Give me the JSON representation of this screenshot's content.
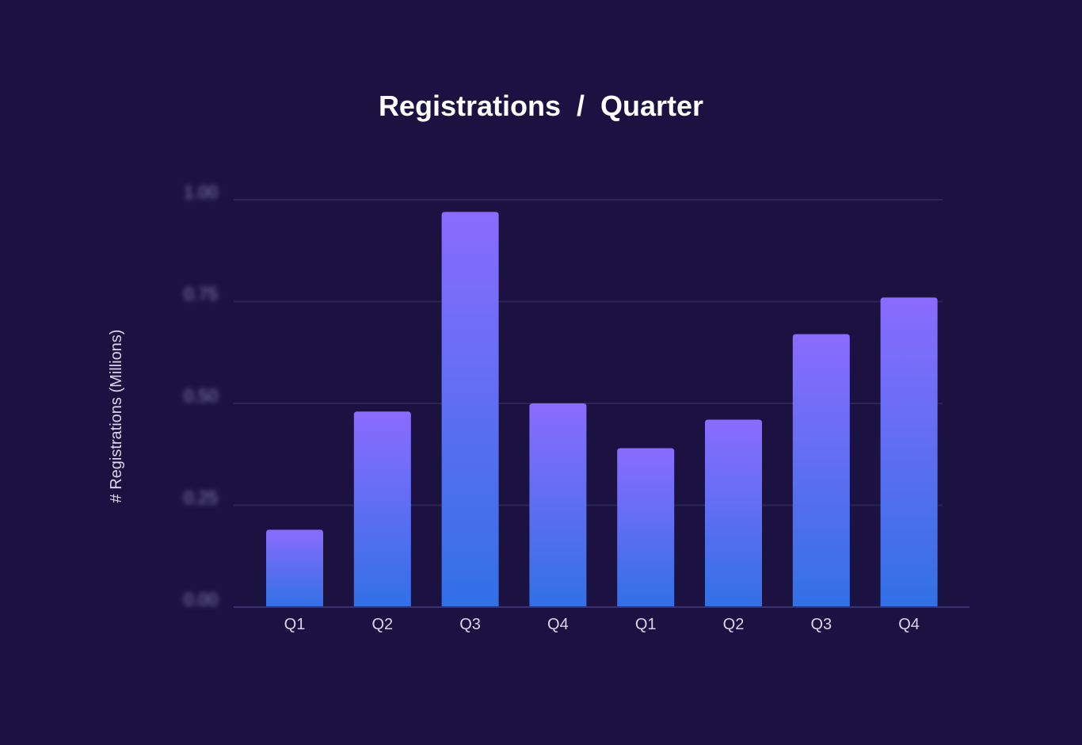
{
  "chart_data": {
    "type": "bar",
    "title": "Registrations  /  Quarter",
    "xlabel": "",
    "ylabel": "# Registrations (Millions)",
    "categories": [
      "Q1",
      "Q2",
      "Q3",
      "Q4",
      "Q1",
      "Q2",
      "Q3",
      "Q4"
    ],
    "values": [
      0.19,
      0.48,
      0.97,
      0.5,
      0.39,
      0.46,
      0.67,
      0.76
    ],
    "ylim": [
      0,
      1
    ],
    "yticks": [
      "0.00",
      "0.25",
      "0.50",
      "0.75",
      "1.00"
    ],
    "ytick_values": [
      0,
      0.25,
      0.5,
      0.75,
      1.0
    ],
    "ytick_labels_blurred": true,
    "grid": true,
    "legend": "none",
    "colors": {
      "background": "#1b1242",
      "bar_top": "#8a6cff",
      "bar_bottom": "#3170e6",
      "gridline": "#2c2458",
      "axis": "#3a3270"
    }
  }
}
